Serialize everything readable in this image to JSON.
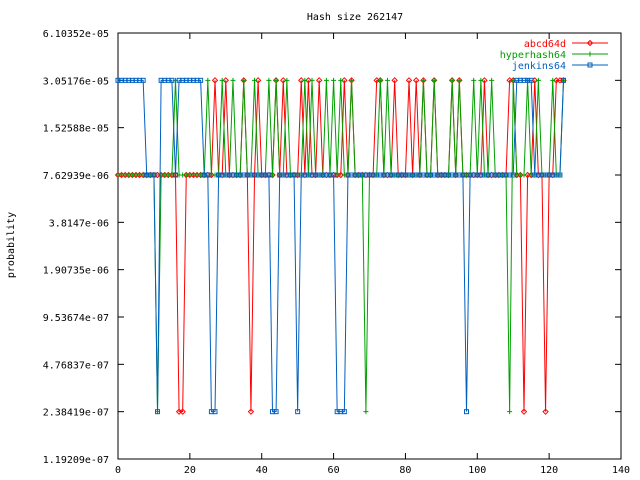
{
  "chart_data": {
    "type": "line",
    "title": "Hash size 262147",
    "xlabel": "",
    "ylabel": "probability",
    "xlim": [
      0,
      140
    ],
    "ylim_log2": [
      -23,
      -14
    ],
    "log_scale_y": true,
    "grid": false,
    "legend_position": "top-right",
    "x_ticks": [
      "0",
      "20",
      "40",
      "60",
      "80",
      "100",
      "120",
      "140"
    ],
    "y_ticks": [
      "1.19209e-07",
      "2.38419e-07",
      "4.76837e-07",
      "9.53674e-07",
      "1.90735e-06",
      "3.8147e-06",
      "7.62939e-06",
      "1.52588e-05",
      "3.05176e-05",
      "6.10352e-05"
    ],
    "series": [
      {
        "name": "abcd64d",
        "color": "#ff0000",
        "marker": "diamond",
        "log2_values": [
          -17,
          -17,
          -17,
          -17,
          -17,
          -17,
          -17,
          -17,
          -17,
          -17,
          -17,
          -17,
          -17,
          -17,
          -17,
          -17,
          -17,
          -22,
          -22,
          -17,
          -17,
          -17,
          -17,
          -17,
          -17,
          -17,
          -17,
          -15,
          -17,
          -17,
          -15,
          -17,
          -17,
          -17,
          -17,
          -15,
          -17,
          -22,
          -17,
          -15,
          -17,
          -17,
          -17,
          -17,
          -15,
          -17,
          -15,
          -17,
          -17,
          -17,
          -17,
          -15,
          -17,
          -15,
          -17,
          -17,
          -15,
          -17,
          -17,
          -17,
          -17,
          -17,
          -17,
          -15,
          -17,
          -15,
          -17,
          -17,
          -17,
          -17,
          -17,
          -17,
          -15,
          -15,
          -17,
          -17,
          -17,
          -15,
          -17,
          -17,
          -17,
          -15,
          -17,
          -15,
          -17,
          -15,
          -17,
          -17,
          -15,
          -17,
          -17,
          -17,
          -17,
          -15,
          -17,
          -15,
          -17,
          -17,
          -17,
          -17,
          -17,
          -17,
          -15,
          -17,
          -17,
          -17,
          -17,
          -17,
          -17,
          -15,
          -15,
          -17,
          -17,
          -22,
          -17,
          -17,
          -15,
          -17,
          -17,
          -22,
          -17,
          -17,
          -15,
          -15,
          -15
        ]
      },
      {
        "name": "hyperhash64",
        "color": "#00a000",
        "marker": "plus",
        "log2_values": [
          -17,
          -17,
          -17,
          -17,
          -17,
          -17,
          -17,
          -17,
          -17,
          -17,
          -17,
          -22,
          -17,
          -17,
          -17,
          -17,
          -15,
          -17,
          -17,
          -17,
          -17,
          -17,
          -17,
          -17,
          -17,
          -15,
          -17,
          -17,
          -17,
          -15,
          -17,
          -17,
          -15,
          -17,
          -17,
          -15,
          -17,
          -17,
          -15,
          -17,
          -17,
          -17,
          -15,
          -17,
          -15,
          -17,
          -17,
          -15,
          -17,
          -17,
          -17,
          -17,
          -15,
          -17,
          -15,
          -17,
          -17,
          -17,
          -15,
          -17,
          -15,
          -17,
          -15,
          -17,
          -17,
          -15,
          -17,
          -17,
          -17,
          -22,
          -17,
          -17,
          -17,
          -15,
          -17,
          -15,
          -17,
          -17,
          -17,
          -17,
          -17,
          -17,
          -17,
          -17,
          -17,
          -15,
          -17,
          -17,
          -15,
          -17,
          -17,
          -17,
          -17,
          -15,
          -17,
          -15,
          -17,
          -17,
          -17,
          -15,
          -17,
          -15,
          -17,
          -17,
          -15,
          -17,
          -17,
          -17,
          -17,
          -22,
          -15,
          -17,
          -17,
          -17,
          -15,
          -17,
          -17,
          -15,
          -17,
          -17,
          -17,
          -15,
          -17,
          -17,
          -15
        ]
      },
      {
        "name": "jenkins64",
        "color": "#0060c0",
        "marker": "square",
        "log2_values": [
          -15,
          -15,
          -15,
          -15,
          -15,
          -15,
          -15,
          -15,
          -17,
          -17,
          -17,
          -22,
          -15,
          -15,
          -15,
          -15,
          -17,
          -15,
          -15,
          -15,
          -15,
          -15,
          -15,
          -15,
          -17,
          -17,
          -22,
          -22,
          -17,
          -17,
          -17,
          -17,
          -17,
          -17,
          -17,
          -17,
          -17,
          -17,
          -17,
          -17,
          -17,
          -17,
          -17,
          -22,
          -22,
          -17,
          -17,
          -17,
          -17,
          -17,
          -22,
          -17,
          -17,
          -17,
          -17,
          -17,
          -17,
          -17,
          -17,
          -17,
          -17,
          -22,
          -22,
          -22,
          -17,
          -17,
          -17,
          -17,
          -17,
          -17,
          -17,
          -17,
          -17,
          -17,
          -17,
          -17,
          -17,
          -17,
          -17,
          -17,
          -17,
          -17,
          -17,
          -17,
          -17,
          -17,
          -17,
          -17,
          -17,
          -17,
          -17,
          -17,
          -17,
          -17,
          -17,
          -17,
          -17,
          -22,
          -17,
          -17,
          -17,
          -17,
          -17,
          -17,
          -17,
          -17,
          -17,
          -17,
          -17,
          -17,
          -17,
          -15,
          -15,
          -15,
          -15,
          -15,
          -17,
          -17,
          -17,
          -17,
          -17,
          -17,
          -17,
          -17,
          -15
        ]
      }
    ]
  }
}
